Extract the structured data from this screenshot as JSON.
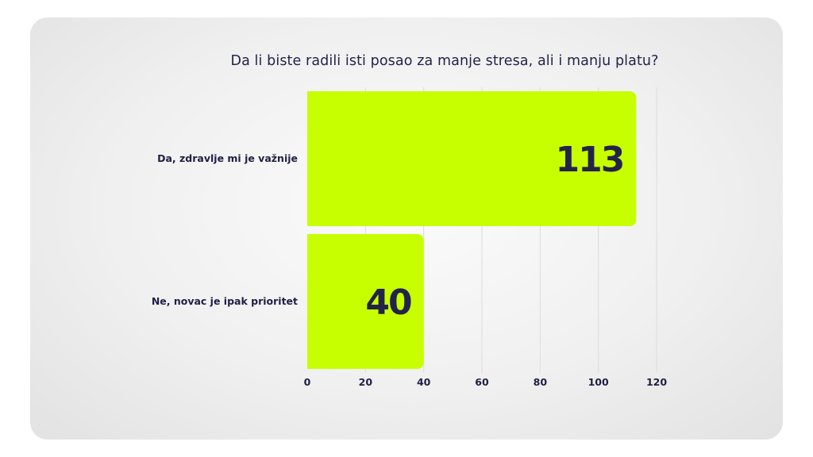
{
  "chart_data": {
    "type": "bar",
    "orientation": "horizontal",
    "title": "Da li biste radili isti posao za manje stresa, ali i manju platu?",
    "categories": [
      "Da, zdravlje mi je važnije",
      "Ne, novac je ipak prioritet"
    ],
    "values": [
      113,
      40
    ],
    "value_labels": [
      "113",
      "40"
    ],
    "xlim": [
      0,
      120
    ],
    "xticks": [
      0,
      20,
      40,
      60,
      80,
      100,
      120
    ],
    "xtick_labels": [
      "0",
      "20",
      "40",
      "60",
      "80",
      "100",
      "120"
    ],
    "grid": "vertical",
    "legend": "none"
  },
  "colors": {
    "bar": "#c8ff00",
    "text": "#23234a",
    "grid": "#dcdcdc"
  }
}
